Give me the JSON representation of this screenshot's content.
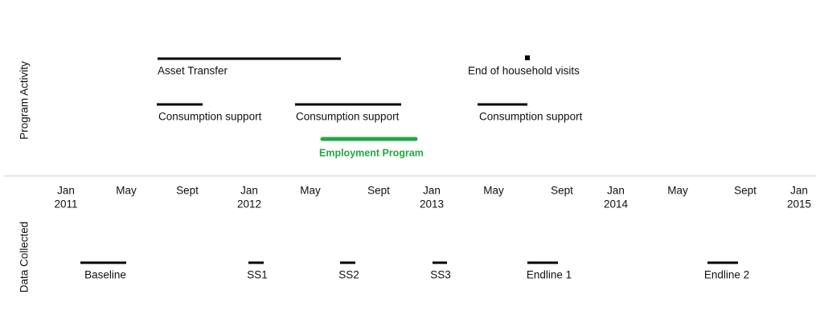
{
  "axis_labels": {
    "top": "Program Activity",
    "bottom": "Data Collected"
  },
  "ticks": [
    {
      "month": "Jan",
      "year": "2011"
    },
    {
      "month": "May"
    },
    {
      "month": "Sept"
    },
    {
      "month": "Jan",
      "year": "2012"
    },
    {
      "month": "May"
    },
    {
      "month": "Sept"
    },
    {
      "month": "Jan",
      "year": "2013"
    },
    {
      "month": "May"
    },
    {
      "month": "Sept"
    },
    {
      "month": "Jan",
      "year": "2014"
    },
    {
      "month": "May"
    },
    {
      "month": "Sept"
    },
    {
      "month": "Jan",
      "year": "2015"
    }
  ],
  "activities": [
    {
      "label": "Asset Transfer"
    },
    {
      "label": "End of household visits"
    },
    {
      "label": "Consumption support"
    },
    {
      "label": "Consumption support"
    },
    {
      "label": "Consumption support"
    },
    {
      "label": "Employment Program"
    }
  ],
  "data_collected": [
    {
      "label": "Baseline"
    },
    {
      "label": "SS1"
    },
    {
      "label": "SS2"
    },
    {
      "label": "SS3"
    },
    {
      "label": "Endline 1"
    },
    {
      "label": "Endline 2"
    }
  ]
}
